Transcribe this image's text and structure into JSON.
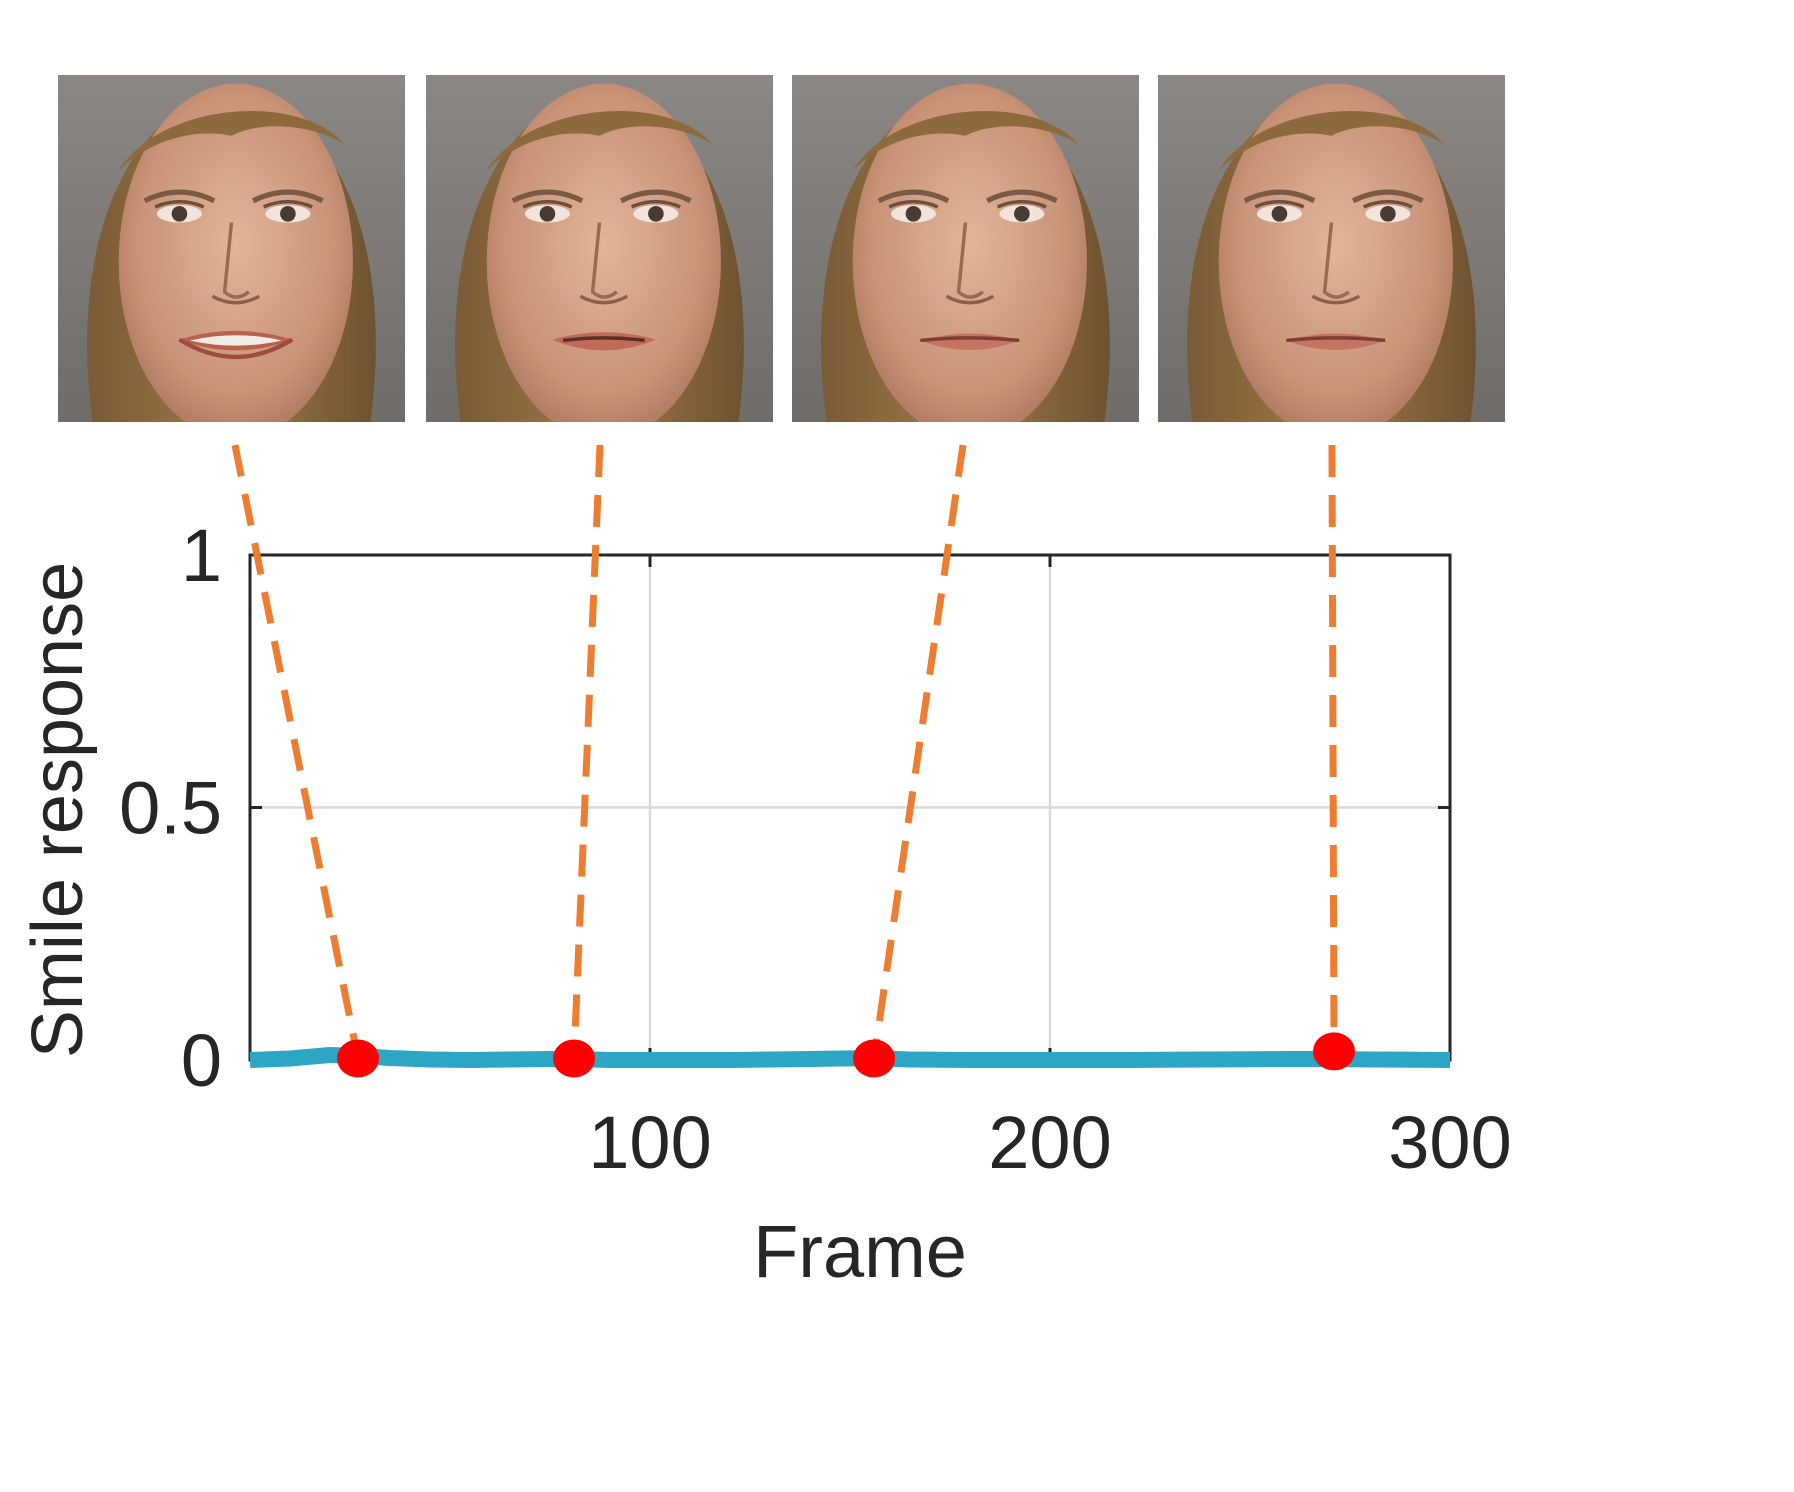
{
  "chart_data": {
    "type": "line",
    "title": "",
    "xlabel": "Frame",
    "ylabel": "Smile response",
    "xlim": [
      0,
      300
    ],
    "ylim": [
      0,
      1
    ],
    "xticks": [
      100,
      200,
      300
    ],
    "xtick_labels": [
      "100",
      "200",
      "300"
    ],
    "yticks": [
      0,
      0.5,
      1
    ],
    "ytick_labels": [
      "0",
      "0.5",
      "1"
    ],
    "grid": true,
    "series": [
      {
        "name": "smile-response",
        "color": "#2ca6c4",
        "x": [
          0,
          10,
          20,
          27,
          35,
          45,
          55,
          65,
          75,
          81,
          90,
          100,
          120,
          140,
          156,
          165,
          180,
          200,
          220,
          240,
          260,
          270,
          280,
          300
        ],
        "y": [
          0.0,
          0.003,
          0.01,
          0.008,
          0.004,
          0.001,
          0.0,
          0.001,
          0.002,
          0.002,
          0.0,
          0.0,
          0.0,
          0.002,
          0.004,
          0.001,
          0.0,
          0.0,
          0.0,
          0.001,
          0.002,
          0.002,
          0.001,
          0.0
        ]
      }
    ],
    "highlighted_points": [
      {
        "x": 27,
        "y": 0.003
      },
      {
        "x": 81,
        "y": 0.003
      },
      {
        "x": 156,
        "y": 0.003
      },
      {
        "x": 271,
        "y": 0.017
      }
    ],
    "marker_color": "#ff0000",
    "connector_color": "#ed7d31"
  },
  "frames": [
    {
      "name": "face-frame-1",
      "mouth": "open"
    },
    {
      "name": "face-frame-2",
      "mouth": "slightly-open"
    },
    {
      "name": "face-frame-3",
      "mouth": "closed"
    },
    {
      "name": "face-frame-4",
      "mouth": "closed"
    }
  ]
}
